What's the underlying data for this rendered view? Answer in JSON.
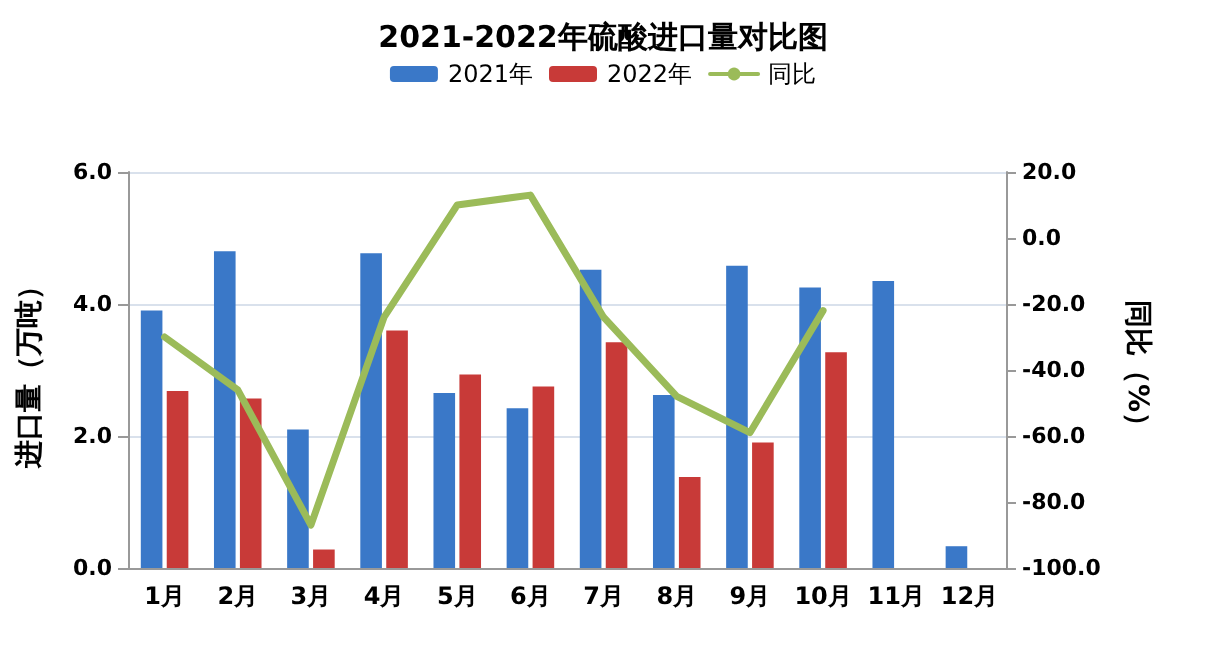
{
  "chart_data": {
    "type": "bar",
    "title": "2021-2022年硫酸进口量对比图",
    "ylabel": "进口量（万吨）",
    "y2label": "同比（%）",
    "categories": [
      "1月",
      "2月",
      "3月",
      "4月",
      "5月",
      "6月",
      "7月",
      "8月",
      "9月",
      "10月",
      "11月",
      "12月"
    ],
    "series": [
      {
        "name": "2021年",
        "color": "#3a78c8",
        "values": [
          3.9,
          4.8,
          2.1,
          4.77,
          2.65,
          2.42,
          4.52,
          2.62,
          4.58,
          4.25,
          4.35,
          0.33
        ]
      },
      {
        "name": "2022年",
        "color": "#c83a38",
        "values": [
          2.68,
          2.57,
          0.28,
          3.6,
          2.93,
          2.75,
          3.42,
          1.38,
          1.9,
          3.27,
          null,
          null
        ]
      },
      {
        "name": "同比",
        "type": "line",
        "axis": "y2",
        "color": "#9bbb59",
        "values": [
          -30,
          -46,
          -87,
          -24,
          10,
          13,
          -24,
          -48,
          -59,
          -22,
          null,
          null
        ]
      }
    ],
    "ylim": [
      0,
      6
    ],
    "yticks": [
      {
        "value": 0,
        "label": "0.0"
      },
      {
        "value": 2,
        "label": "2.0"
      },
      {
        "value": 4,
        "label": "4.0"
      },
      {
        "value": 6,
        "label": "6.0"
      }
    ],
    "y2lim": [
      -100,
      20
    ],
    "y2ticks": [
      {
        "value": -100,
        "label": "-100.0"
      },
      {
        "value": -80,
        "label": "-80.0"
      },
      {
        "value": -60,
        "label": "-60.0"
      },
      {
        "value": -40,
        "label": "-40.0"
      },
      {
        "value": -20,
        "label": "-20.0"
      },
      {
        "value": 0,
        "label": "0.0"
      },
      {
        "value": 20,
        "label": "20.0"
      }
    ],
    "grid": "y",
    "legend": "top",
    "marker": "none",
    "line_style": "solid"
  }
}
